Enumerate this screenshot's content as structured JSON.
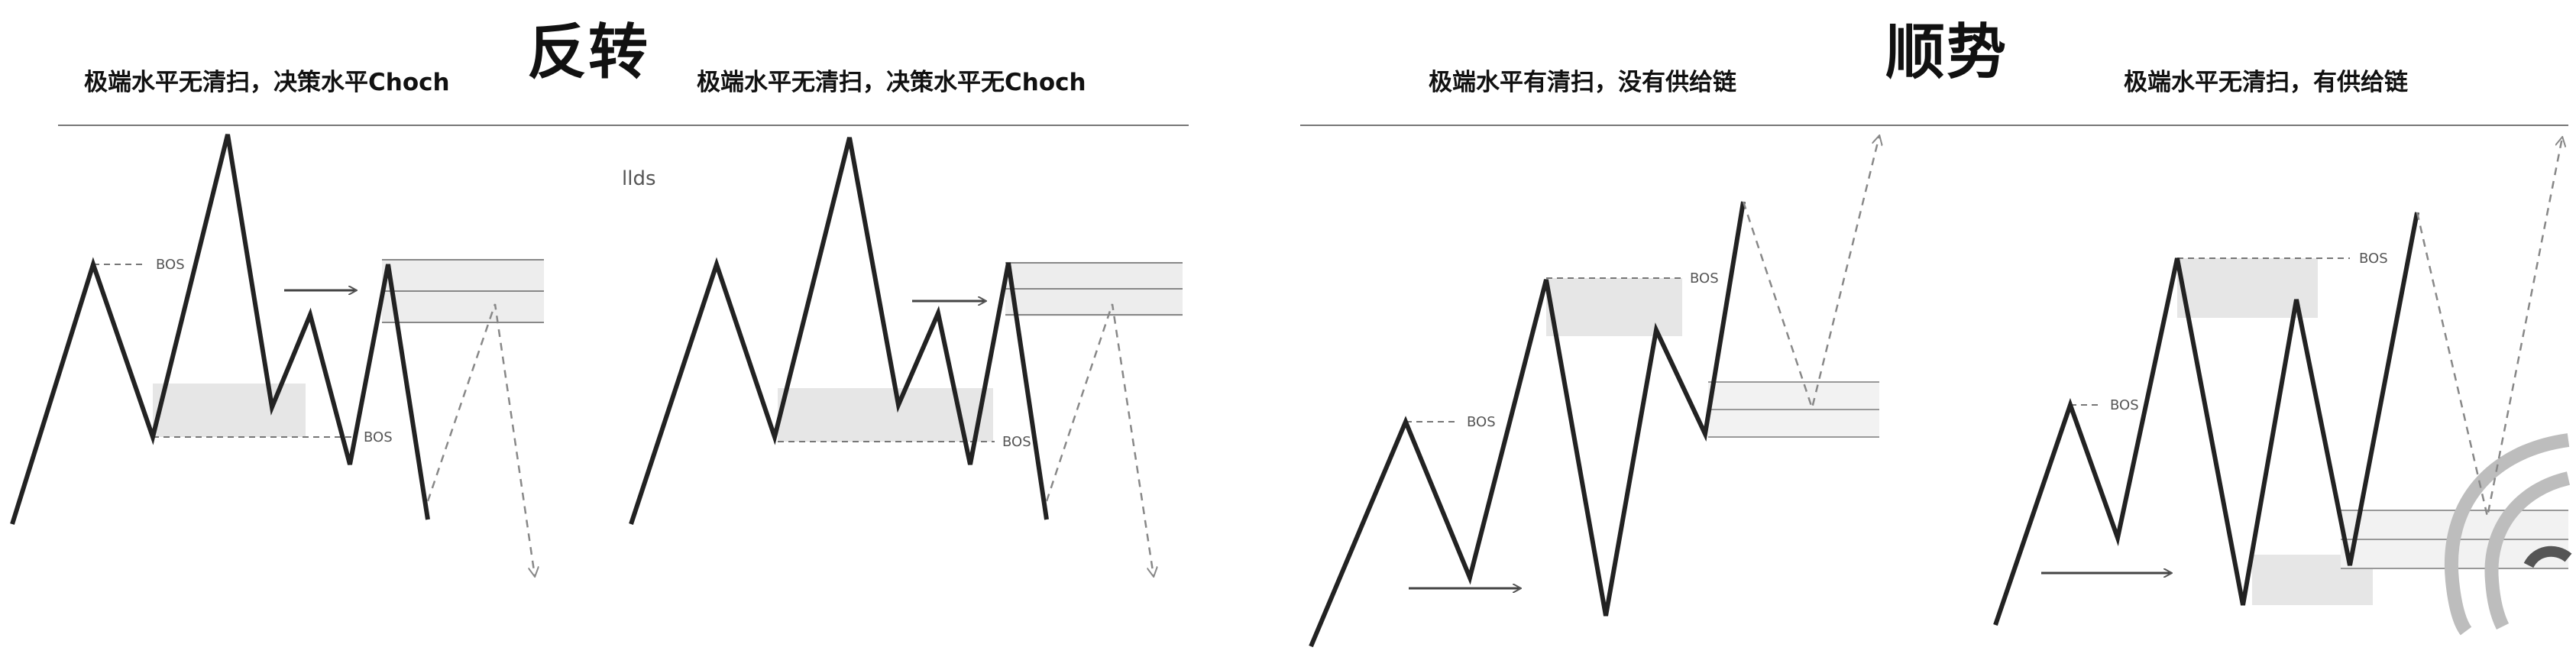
{
  "sections": [
    {
      "title": "反转",
      "panels": [
        {
          "caption": "极端水平无清扫，决策水平Choch"
        },
        {
          "caption": "极端水平无清扫，决策水平无Choch"
        }
      ]
    },
    {
      "title": "顺势",
      "panels": [
        {
          "caption": "极端水平有清扫，没有供给链"
        },
        {
          "caption": "极端水平无清扫，有供给链"
        }
      ]
    }
  ],
  "labels": {
    "bos": "BOS",
    "stray_text": "llds"
  }
}
